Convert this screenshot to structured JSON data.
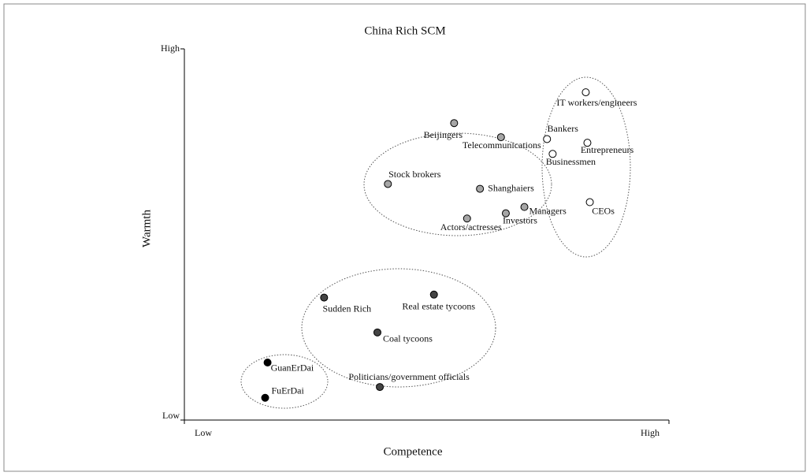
{
  "chart_data": {
    "type": "scatter",
    "title": "China Rich SCM",
    "xlabel": "Competence",
    "ylabel": "Warmth",
    "xlim": [
      0,
      6
    ],
    "ylim": [
      0,
      10
    ],
    "xticks": [
      {
        "value": 0,
        "label": "Low"
      },
      {
        "value": 6,
        "label": "High"
      }
    ],
    "yticks": [
      {
        "value": 0,
        "label": "Low"
      },
      {
        "value": 10,
        "label": "High"
      }
    ],
    "series": [
      {
        "color": "#ffffff",
        "labels": [
          "IT workers/engineers",
          "Bankers",
          "Entrepreneurs",
          "Businessmen",
          "CEOs"
        ],
        "x": [
          4.97,
          4.49,
          4.99,
          4.56,
          5.02
        ],
        "values": [
          8.83,
          7.57,
          7.47,
          7.17,
          5.87
        ]
      },
      {
        "color": "#a6a6a6",
        "labels": [
          "Beijingers",
          "Telecommunications",
          "Stock brokers",
          "Shanghaiers",
          "Managers",
          "Investors",
          "Actors/actresses"
        ],
        "x": [
          3.34,
          3.92,
          2.52,
          3.66,
          4.21,
          3.98,
          3.5
        ],
        "values": [
          8.0,
          7.62,
          6.36,
          6.23,
          5.74,
          5.57,
          5.43
        ]
      },
      {
        "color": "#444444",
        "labels": [
          "Sudden Rich",
          "Real estate tycoons",
          "Coal tycoons",
          "Politicians/government officials"
        ],
        "x": [
          1.73,
          3.09,
          2.39,
          2.42
        ],
        "values": [
          3.3,
          3.38,
          2.36,
          0.89
        ]
      },
      {
        "color": "#000000",
        "labels": [
          "GuanErDai",
          "FuErDai"
        ],
        "x": [
          1.03,
          1.0
        ],
        "values": [
          1.55,
          0.6
        ]
      }
    ]
  }
}
